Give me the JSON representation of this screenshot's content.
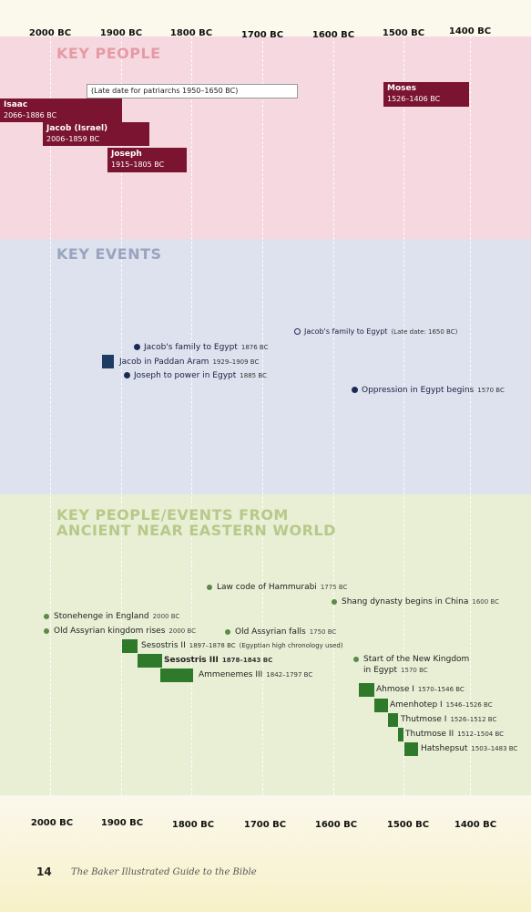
{
  "axis": {
    "top": [
      "2000 BC",
      "1900 BC",
      "1800 BC",
      "1700 BC",
      "1600 BC",
      "1500 BC",
      "1400 BC"
    ],
    "bottom": [
      "2000 BC",
      "1900 BC",
      "1800 BC",
      "1700 BC",
      "1600 BC",
      "1500 BC",
      "1400 BC"
    ]
  },
  "sections": {
    "people": "KEY PEOPLE",
    "events": "KEY EVENTS",
    "world_line1": "KEY PEOPLE/EVENTS FROM",
    "world_line2": "ANCIENT NEAR EASTERN WORLD"
  },
  "people": {
    "late_date_note": "(Late date for patriarchs 1950–1650 BC)",
    "isaac": {
      "name": "Isaac",
      "dates": "2066–1886 BC"
    },
    "jacob": {
      "name": "Jacob (Israel)",
      "dates": "2006–1859 BC"
    },
    "joseph": {
      "name": "Joseph",
      "dates": "1915–1805 BC"
    },
    "moses": {
      "name": "Moses",
      "dates": "1526–1406 BC"
    }
  },
  "events": {
    "family_late": {
      "label": "Jacob's family to Egypt",
      "dates": "(Late date: 1650 BC)"
    },
    "family": {
      "label": "Jacob's family to Egypt",
      "dates": "1876 BC"
    },
    "paddan": {
      "label": "Jacob in Paddan Aram",
      "dates": "1929–1909 BC"
    },
    "joseph_power": {
      "label": "Joseph to power in Egypt",
      "dates": "1885 BC"
    },
    "oppression": {
      "label": "Oppression in Egypt begins",
      "dates": "1570 BC"
    }
  },
  "world": {
    "hammurabi": {
      "label": "Law code of Hammurabi",
      "dates": "1775 BC"
    },
    "shang": {
      "label": "Shang dynasty begins in China",
      "dates": "1600 BC"
    },
    "stonehenge": {
      "label": "Stonehenge in England",
      "dates": "2000 BC"
    },
    "assyrian": {
      "label": "Old Assyrian kingdom rises",
      "dates": "2000 BC"
    },
    "assyria_falls": {
      "label": "Old Assyrian falls",
      "dates": "1750 BC"
    },
    "sesostris2": {
      "label": "Sesostris II",
      "dates": "1897–1878 BC",
      "note": "(Egyptian high chronology used)"
    },
    "sesostris3": {
      "label": "Sesostris III",
      "dates": "1878–1843 BC"
    },
    "ammenemes": {
      "label": "Ammenemes III",
      "dates": "1842–1797 BC"
    },
    "new_kingdom_1": {
      "label": "Start of the New Kingdom"
    },
    "new_kingdom_2": {
      "label": "in Egypt",
      "dates": "1570 BC"
    },
    "ahmose": {
      "label": "Ahmose I",
      "dates": "1570–1546 BC"
    },
    "amenhotep": {
      "label": "Amenhotep I",
      "dates": "1546–1526 BC"
    },
    "thutmose1": {
      "label": "Thutmose I",
      "dates": "1526–1512 BC"
    },
    "thutmose2": {
      "label": "Thutmose II",
      "dates": "1512–1504 BC"
    },
    "hatshepsut": {
      "label": "Hatshepsut",
      "dates": "1503–1483 BC"
    }
  },
  "footer": {
    "page_number": "14",
    "book_title": "The Baker Illustrated Guide to the Bible"
  }
}
